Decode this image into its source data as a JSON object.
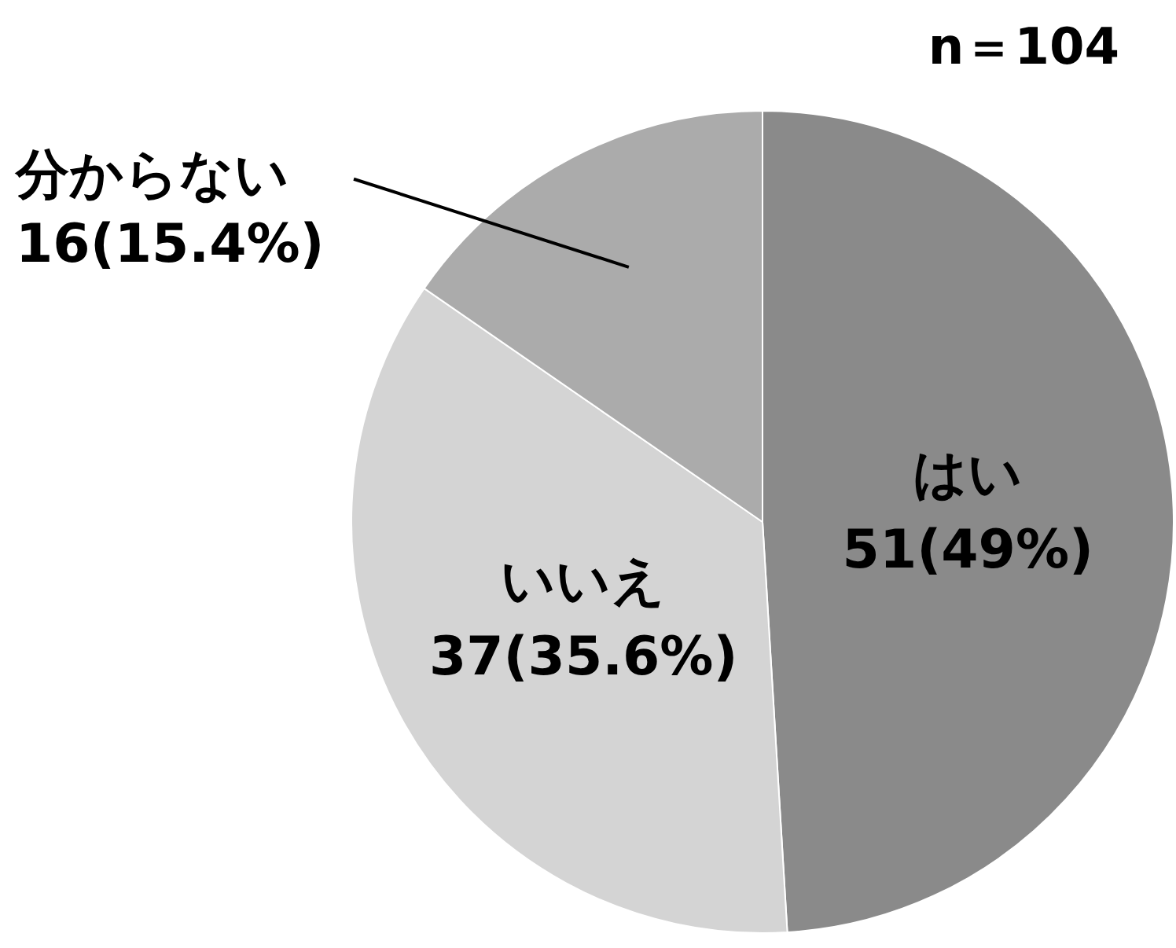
{
  "chart_data": {
    "type": "pie",
    "categories": [
      "はい",
      "いいえ",
      "分からない"
    ],
    "values": [
      51,
      37,
      16
    ],
    "colors": [
      "#8a8a8a",
      "#d4d4d4",
      "#ababab"
    ],
    "value_labels": [
      "51(49%)",
      "37(35.6%)",
      "16(15.4%)"
    ],
    "annotations": [
      "n＝104"
    ],
    "legend": false
  }
}
